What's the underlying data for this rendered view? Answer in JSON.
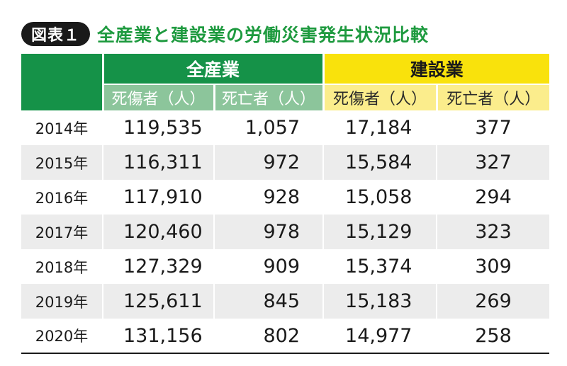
{
  "badge": "図表１",
  "title": "全産業と建設業の労働災害発生状況比較",
  "groups": {
    "all_industry": "全産業",
    "construction": "建設業"
  },
  "columns": {
    "all_casualties": "死傷者（人）",
    "all_deaths": "死亡者（人）",
    "con_casualties": "死傷者（人）",
    "con_deaths": "死亡者（人）"
  },
  "rows": [
    {
      "year": "2014年",
      "all_casualties": "119,535",
      "all_deaths": "1,057",
      "con_casualties": "17,184",
      "con_deaths": "377"
    },
    {
      "year": "2015年",
      "all_casualties": "116,311",
      "all_deaths": "972",
      "con_casualties": "15,584",
      "con_deaths": "327"
    },
    {
      "year": "2016年",
      "all_casualties": "117,910",
      "all_deaths": "928",
      "con_casualties": "15,058",
      "con_deaths": "294"
    },
    {
      "year": "2017年",
      "all_casualties": "120,460",
      "all_deaths": "978",
      "con_casualties": "15,129",
      "con_deaths": "323"
    },
    {
      "year": "2018年",
      "all_casualties": "127,329",
      "all_deaths": "909",
      "con_casualties": "15,374",
      "con_deaths": "309"
    },
    {
      "year": "2019年",
      "all_casualties": "125,611",
      "all_deaths": "845",
      "con_casualties": "15,183",
      "con_deaths": "269"
    },
    {
      "year": "2020年",
      "all_casualties": "131,156",
      "all_deaths": "802",
      "con_casualties": "14,977",
      "con_deaths": "258"
    }
  ],
  "colors": {
    "title_green": "#1e9a3f",
    "header_green": "#159248",
    "subheader_green": "#8cc59b",
    "header_yellow": "#f9e20c",
    "subheader_yellow": "#fbed8c",
    "row_shade": "#ececec"
  }
}
